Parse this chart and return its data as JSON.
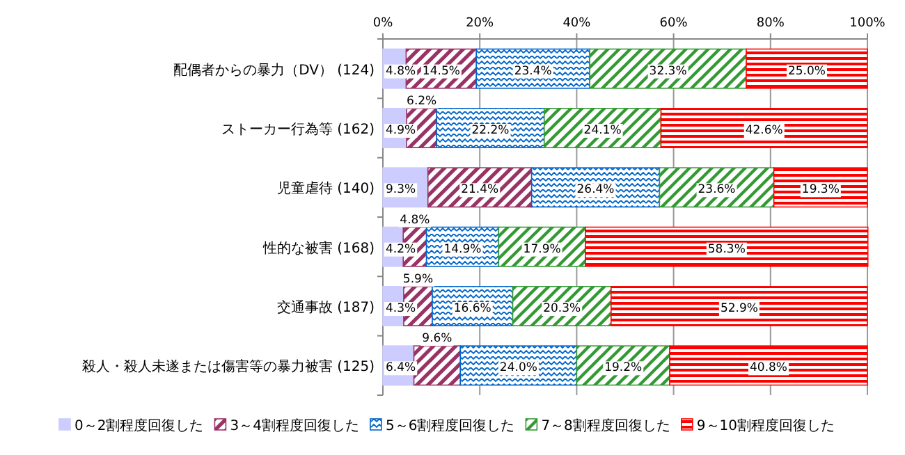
{
  "chart_data": {
    "type": "bar",
    "orientation": "horizontal",
    "stacked": true,
    "grid": "x",
    "legend": "bottom",
    "categories": [
      "配偶者からの暴力（DV） (124)",
      "ストーカー行為等 (162)",
      "児童虐待 (140)",
      "性的な被害 (168)",
      "交通事故 (187)",
      "殺人・殺人未遂または傷害等の暴力被害 (125)"
    ],
    "xlim": [
      0,
      100
    ],
    "xticks": [
      {
        "value": 0,
        "label": "0%"
      },
      {
        "value": 20,
        "label": "20%"
      },
      {
        "value": 40,
        "label": "40%"
      },
      {
        "value": 60,
        "label": "60%"
      },
      {
        "value": 80,
        "label": "80%"
      },
      {
        "value": 100,
        "label": "100%"
      }
    ],
    "series": [
      {
        "name": "0～2割程度回復した",
        "color": "#ccccff",
        "values": [
          4.8,
          4.9,
          9.3,
          4.2,
          4.3,
          6.4
        ],
        "value_labels": [
          "4.8%",
          "4.9%",
          "9.3%",
          "4.2%",
          "4.3%",
          "6.4%"
        ]
      },
      {
        "name": "3～4割程度回復した",
        "color": "#993366",
        "values": [
          14.5,
          6.2,
          21.4,
          4.8,
          5.9,
          9.6
        ],
        "value_labels": [
          "14.5%",
          "6.2%",
          "21.4%",
          "4.8%",
          "5.9%",
          "9.6%"
        ]
      },
      {
        "name": "5～6割程度回復した",
        "color": "#0066cc",
        "values": [
          23.4,
          22.2,
          26.4,
          14.9,
          16.6,
          24.0
        ],
        "value_labels": [
          "23.4%",
          "22.2%",
          "26.4%",
          "14.9%",
          "16.6%",
          "24.0%"
        ]
      },
      {
        "name": "7～8割程度回復した",
        "color": "#339933",
        "values": [
          32.3,
          24.1,
          23.6,
          17.9,
          20.3,
          19.2
        ],
        "value_labels": [
          "32.3%",
          "24.1%",
          "23.6%",
          "17.9%",
          "20.3%",
          "19.2%"
        ]
      },
      {
        "name": "9～10割程度回復した",
        "color": "#ff0000",
        "values": [
          25.0,
          42.6,
          19.3,
          58.3,
          52.9,
          40.8
        ],
        "value_labels": [
          "25.0%",
          "42.6%",
          "19.3%",
          "58.3%",
          "52.9%",
          "40.8%"
        ]
      }
    ]
  }
}
